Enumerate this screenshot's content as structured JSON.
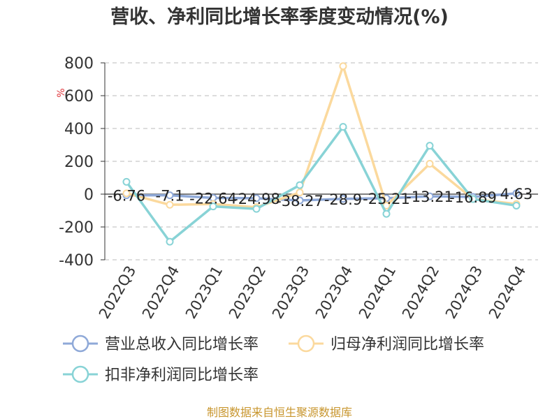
{
  "chart_data": {
    "type": "line",
    "title": "营收、净利同比增长率季度变动情况(%)",
    "unit": "%",
    "categories": [
      "2022Q3",
      "2022Q4",
      "2023Q1",
      "2023Q2",
      "2023Q3",
      "2023Q4",
      "2024Q1",
      "2024Q2",
      "2024Q3",
      "2024Q4"
    ],
    "ylim": [
      -400,
      800
    ],
    "yticks": [
      -400,
      -200,
      0,
      200,
      400,
      600,
      800
    ],
    "grid": true,
    "legend_position": "bottom",
    "series": [
      {
        "name": "营业总收入同比增长率",
        "color": "#8fa9d8",
        "values": [
          -6.76,
          -7.1,
          -22.64,
          -24.98,
          -38.27,
          -28.9,
          -25.21,
          -13.21,
          -16.89,
          4.63
        ],
        "labels": [
          "-6.76",
          "-7.1",
          "-22.64",
          "-24.98",
          "-38.27",
          "-28.9",
          "-25.21",
          "-13.21",
          "-16.89",
          "4.63"
        ]
      },
      {
        "name": "归母净利润同比增长率",
        "color": "#fbd99d",
        "values": [
          5,
          -65,
          -60,
          -80,
          10,
          780,
          -70,
          185,
          -30,
          -60
        ]
      },
      {
        "name": "扣非净利润同比增长率",
        "color": "#88d3d6",
        "values": [
          75,
          -290,
          -75,
          -90,
          55,
          410,
          -120,
          295,
          -30,
          -70
        ]
      }
    ],
    "source": "制图数据来自恒生聚源数据库"
  }
}
